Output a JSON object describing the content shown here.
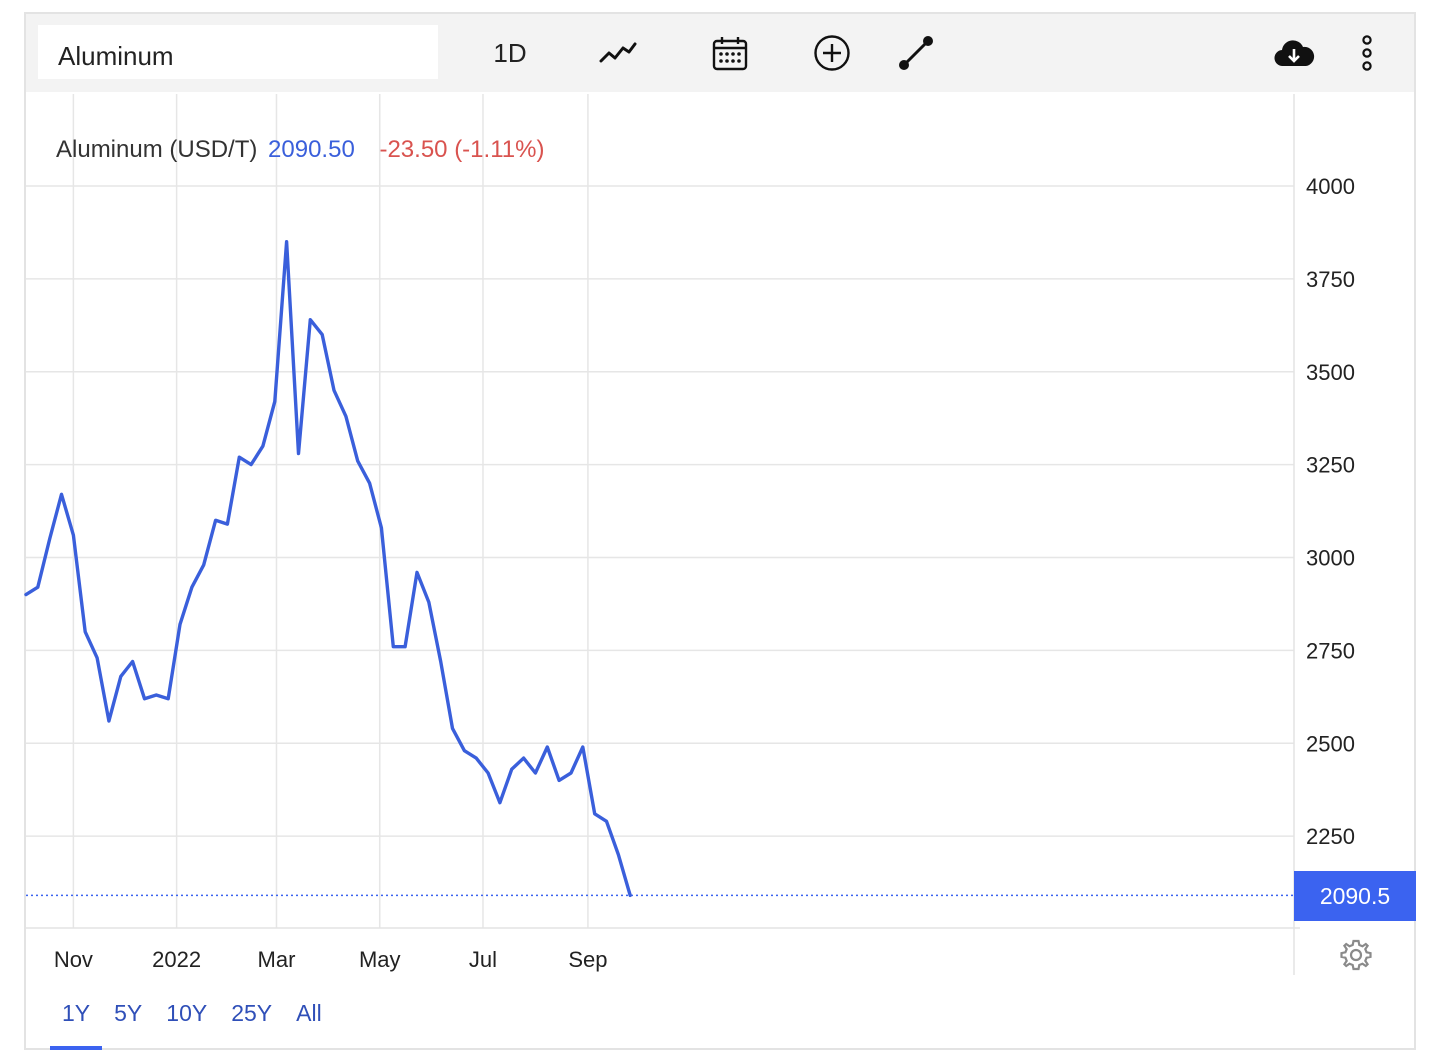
{
  "toolbar": {
    "symbol": "Aluminum",
    "interval_label": "1D",
    "icons": [
      "line-chart-icon",
      "calendar-icon",
      "add-indicator-icon",
      "draw-line-icon",
      "download-cloud-icon",
      "more-vertical-icon"
    ]
  },
  "legend": {
    "name": "Aluminum (USD/T)",
    "price": "2090.50",
    "change": "-23.50 (-1.11%)"
  },
  "last_price_label": "2090.5",
  "ranges": [
    "1Y",
    "5Y",
    "10Y",
    "25Y",
    "All"
  ],
  "active_range": "1Y",
  "colors": {
    "line": "#3a5fdb",
    "last_box": "#3b63f0",
    "change_negative": "#d9534f"
  },
  "chart_data": {
    "type": "line",
    "series": [
      {
        "name": "Aluminum (USD/T)",
        "x": [
          "2021-10-04",
          "2021-10-11",
          "2021-10-18",
          "2021-10-25",
          "2021-11-01",
          "2021-11-08",
          "2021-11-15",
          "2021-11-22",
          "2021-11-29",
          "2021-12-06",
          "2021-12-13",
          "2021-12-20",
          "2021-12-27",
          "2022-01-03",
          "2022-01-10",
          "2022-01-17",
          "2022-01-24",
          "2022-01-31",
          "2022-02-07",
          "2022-02-14",
          "2022-02-21",
          "2022-02-28",
          "2022-03-07",
          "2022-03-14",
          "2022-03-21",
          "2022-03-28",
          "2022-04-04",
          "2022-04-11",
          "2022-04-18",
          "2022-04-25",
          "2022-05-02",
          "2022-05-09",
          "2022-05-16",
          "2022-05-23",
          "2022-05-30",
          "2022-06-06",
          "2022-06-13",
          "2022-06-20",
          "2022-06-27",
          "2022-07-04",
          "2022-07-11",
          "2022-07-18",
          "2022-07-25",
          "2022-08-01",
          "2022-08-08",
          "2022-08-15",
          "2022-08-22",
          "2022-08-29",
          "2022-09-05",
          "2022-09-12",
          "2022-09-19",
          "2022-09-26"
        ],
        "values": [
          2900,
          2920,
          3050,
          3170,
          3060,
          2800,
          2730,
          2560,
          2680,
          2720,
          2620,
          2630,
          2620,
          2820,
          2920,
          2980,
          3100,
          3090,
          3270,
          3250,
          3300,
          3420,
          3850,
          3280,
          3640,
          3600,
          3450,
          3380,
          3260,
          3200,
          3080,
          2760,
          2760,
          2960,
          2880,
          2720,
          2540,
          2480,
          2460,
          2420,
          2340,
          2430,
          2460,
          2420,
          2490,
          2400,
          2420,
          2490,
          2310,
          2290,
          2200,
          2090.5
        ]
      }
    ],
    "x_tick_labels": [
      "Nov",
      "2022",
      "Mar",
      "May",
      "Jul",
      "Sep"
    ],
    "y_tick_labels": [
      "4000",
      "3750",
      "3500",
      "3250",
      "3000",
      "2750",
      "2500",
      "2250"
    ],
    "ylim": [
      2000,
      4000
    ],
    "grid": true,
    "legend_position": "top-left"
  }
}
